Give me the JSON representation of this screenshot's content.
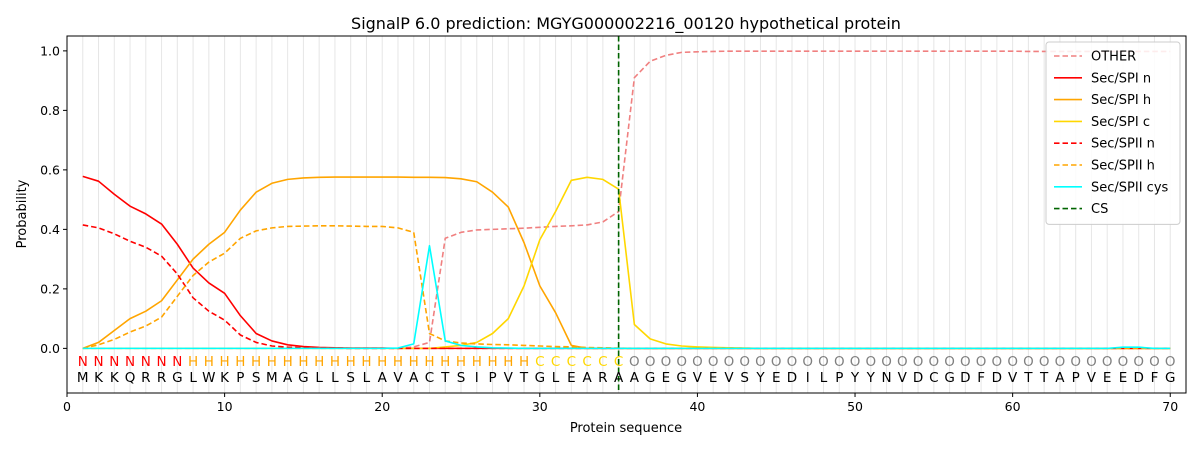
{
  "chart_data": {
    "type": "line",
    "title": "SignalP 6.0 prediction: MGYG000002216_00120 hypothetical protein",
    "xlabel": "Protein sequence",
    "ylabel": "Probability",
    "xlim": [
      0,
      71
    ],
    "ylim": [
      -0.15,
      1.05
    ],
    "xticks": [
      "0",
      "10",
      "20",
      "30",
      "40",
      "50",
      "60",
      "70"
    ],
    "yticks": [
      "0.0",
      "0.2",
      "0.4",
      "0.6",
      "0.8",
      "1.0"
    ],
    "grid": "vertical lines at each residue",
    "legend_position": "top-right",
    "sequence": [
      "M",
      "K",
      "K",
      "Q",
      "R",
      "R",
      "G",
      "L",
      "W",
      "K",
      "P",
      "S",
      "M",
      "A",
      "G",
      "L",
      "L",
      "S",
      "L",
      "A",
      "V",
      "A",
      "C",
      "T",
      "S",
      "I",
      "P",
      "V",
      "T",
      "G",
      "L",
      "E",
      "A",
      "R",
      "A",
      "A",
      "G",
      "E",
      "G",
      "V",
      "E",
      "V",
      "S",
      "Y",
      "E",
      "D",
      "I",
      "L",
      "P",
      "Y",
      "Y",
      "N",
      "V",
      "D",
      "C",
      "G",
      "D",
      "F",
      "D",
      "V",
      "T",
      "T",
      "A",
      "P",
      "V",
      "E",
      "E",
      "D",
      "F",
      "G"
    ],
    "region_labels": [
      "N",
      "N",
      "N",
      "N",
      "N",
      "N",
      "N",
      "H",
      "H",
      "H",
      "H",
      "H",
      "H",
      "H",
      "H",
      "H",
      "H",
      "H",
      "H",
      "H",
      "H",
      "H",
      "H",
      "H",
      "H",
      "H",
      "H",
      "H",
      "H",
      "C",
      "C",
      "C",
      "C",
      "C",
      "C",
      "O",
      "O",
      "O",
      "O",
      "O",
      "O",
      "O",
      "O",
      "O",
      "O",
      "O",
      "O",
      "O",
      "O",
      "O",
      "O",
      "O",
      "O",
      "O",
      "O",
      "O",
      "O",
      "O",
      "O",
      "O",
      "O",
      "O",
      "O",
      "O",
      "O",
      "O",
      "O",
      "O",
      "O",
      "O"
    ],
    "region_colors": {
      "N": "#ff0000",
      "H": "#ffa500",
      "C": "#ffd700",
      "O": "#808080"
    },
    "cleavage_site": 35,
    "series": [
      {
        "name": "OTHER",
        "color": "#f08080",
        "dash": "dashed",
        "values": [
          0.0,
          0.0,
          0.0,
          0.0,
          0.0,
          0.0,
          0.0,
          0.0,
          0.0,
          0.0,
          0.0,
          0.0,
          0.0,
          0.0,
          0.0,
          0.0,
          0.0,
          0.0,
          0.0,
          0.0,
          0.0,
          0.005,
          0.02,
          0.37,
          0.39,
          0.398,
          0.4,
          0.402,
          0.404,
          0.407,
          0.41,
          0.412,
          0.415,
          0.425,
          0.46,
          0.91,
          0.965,
          0.985,
          0.995,
          0.997,
          0.998,
          0.999,
          0.999,
          0.999,
          0.999,
          0.999,
          0.999,
          0.999,
          0.999,
          0.999,
          0.999,
          0.999,
          0.999,
          0.999,
          0.999,
          0.999,
          0.999,
          0.999,
          0.999,
          0.999,
          0.998,
          0.998,
          0.998,
          0.998,
          0.998,
          0.998,
          0.998,
          0.998,
          0.998,
          0.998
        ]
      },
      {
        "name": "Sec/SPI n",
        "color": "#ff0000",
        "dash": "solid",
        "values": [
          0.578,
          0.562,
          0.518,
          0.478,
          0.452,
          0.418,
          0.35,
          0.27,
          0.22,
          0.185,
          0.11,
          0.05,
          0.025,
          0.012,
          0.006,
          0.003,
          0.002,
          0.001,
          0.001,
          0.001,
          0.0,
          0.0,
          0.0,
          0.0,
          0.0,
          0.0,
          0.0,
          0.0,
          0.0,
          0.0,
          0.0,
          0.0,
          0.0,
          0.0,
          0.0,
          0.0,
          0.0,
          0.0,
          0.0,
          0.0,
          0.0,
          0.0,
          0.0,
          0.0,
          0.0,
          0.0,
          0.0,
          0.0,
          0.0,
          0.0,
          0.0,
          0.0,
          0.0,
          0.0,
          0.0,
          0.0,
          0.0,
          0.0,
          0.0,
          0.0,
          0.0,
          0.0,
          0.0,
          0.0,
          0.0,
          0.0,
          0.0,
          0.0,
          0.0,
          0.0
        ]
      },
      {
        "name": "Sec/SPI h",
        "color": "#ffa500",
        "dash": "solid",
        "values": [
          0.0,
          0.02,
          0.06,
          0.1,
          0.125,
          0.16,
          0.23,
          0.3,
          0.35,
          0.39,
          0.465,
          0.525,
          0.555,
          0.568,
          0.573,
          0.575,
          0.576,
          0.576,
          0.576,
          0.576,
          0.576,
          0.575,
          0.575,
          0.574,
          0.57,
          0.56,
          0.525,
          0.475,
          0.355,
          0.21,
          0.12,
          0.01,
          0.0,
          0.0,
          0.0,
          0.0,
          0.0,
          0.0,
          0.0,
          0.0,
          0.0,
          0.0,
          0.0,
          0.0,
          0.0,
          0.0,
          0.0,
          0.0,
          0.0,
          0.0,
          0.0,
          0.0,
          0.0,
          0.0,
          0.0,
          0.0,
          0.0,
          0.0,
          0.0,
          0.0,
          0.0,
          0.0,
          0.0,
          0.0,
          0.0,
          0.0,
          0.0,
          0.0,
          0.0,
          0.0
        ]
      },
      {
        "name": "Sec/SPI c",
        "color": "#ffd700",
        "dash": "solid",
        "values": [
          0.0,
          0.0,
          0.0,
          0.0,
          0.0,
          0.0,
          0.0,
          0.0,
          0.0,
          0.0,
          0.0,
          0.0,
          0.0,
          0.0,
          0.0,
          0.0,
          0.0,
          0.0,
          0.0,
          0.0,
          0.0,
          0.0,
          0.0,
          0.005,
          0.01,
          0.02,
          0.05,
          0.1,
          0.21,
          0.365,
          0.46,
          0.565,
          0.575,
          0.568,
          0.535,
          0.08,
          0.032,
          0.015,
          0.008,
          0.005,
          0.003,
          0.002,
          0.001,
          0.0,
          0.0,
          0.0,
          0.0,
          0.0,
          0.0,
          0.0,
          0.0,
          0.0,
          0.0,
          0.0,
          0.0,
          0.0,
          0.0,
          0.0,
          0.0,
          0.0,
          0.0,
          0.0,
          0.0,
          0.0,
          0.0,
          0.0,
          0.0,
          0.0,
          0.0,
          0.0
        ]
      },
      {
        "name": "Sec/SPII n",
        "color": "#ff0000",
        "dash": "dashed",
        "values": [
          0.415,
          0.405,
          0.385,
          0.36,
          0.34,
          0.31,
          0.25,
          0.17,
          0.125,
          0.095,
          0.045,
          0.02,
          0.008,
          0.004,
          0.002,
          0.001,
          0.001,
          0.0,
          0.0,
          0.0,
          0.0,
          0.0,
          0.0,
          0.0,
          0.0,
          0.0,
          0.0,
          0.0,
          0.0,
          0.0,
          0.0,
          0.0,
          0.0,
          0.0,
          0.0,
          0.0,
          0.0,
          0.0,
          0.0,
          0.0,
          0.0,
          0.0,
          0.0,
          0.0,
          0.0,
          0.0,
          0.0,
          0.0,
          0.0,
          0.0,
          0.0,
          0.0,
          0.0,
          0.0,
          0.0,
          0.0,
          0.0,
          0.0,
          0.0,
          0.0,
          0.0,
          0.0,
          0.0,
          0.0,
          0.0,
          0.0,
          0.0,
          0.0,
          0.0,
          0.0
        ]
      },
      {
        "name": "Sec/SPII h",
        "color": "#ffa500",
        "dash": "dashed",
        "values": [
          0.0,
          0.012,
          0.03,
          0.055,
          0.075,
          0.105,
          0.175,
          0.245,
          0.29,
          0.32,
          0.37,
          0.395,
          0.405,
          0.41,
          0.411,
          0.412,
          0.412,
          0.411,
          0.41,
          0.41,
          0.405,
          0.39,
          0.05,
          0.025,
          0.018,
          0.015,
          0.013,
          0.012,
          0.01,
          0.008,
          0.006,
          0.005,
          0.003,
          0.002,
          0.001,
          0.0,
          0.0,
          0.0,
          0.0,
          0.0,
          0.0,
          0.0,
          0.0,
          0.0,
          0.0,
          0.0,
          0.0,
          0.0,
          0.0,
          0.0,
          0.0,
          0.0,
          0.0,
          0.0,
          0.0,
          0.0,
          0.0,
          0.0,
          0.0,
          0.0,
          0.0,
          0.0,
          0.0,
          0.0,
          0.0,
          0.0,
          0.0,
          0.0,
          0.0,
          0.0
        ]
      },
      {
        "name": "Sec/SPII cys",
        "color": "#00ffff",
        "dash": "solid",
        "values": [
          0.0,
          0.0,
          0.0,
          0.0,
          0.0,
          0.0,
          0.0,
          0.0,
          0.0,
          0.0,
          0.0,
          0.0,
          0.0,
          0.0,
          0.0,
          0.0,
          0.0,
          0.0,
          0.0,
          0.0,
          0.001,
          0.015,
          0.345,
          0.025,
          0.01,
          0.005,
          0.002,
          0.001,
          0.0,
          0.0,
          0.0,
          0.0,
          0.0,
          0.0,
          0.0,
          0.0,
          0.0,
          0.0,
          0.0,
          0.0,
          0.0,
          0.0,
          0.0,
          0.0,
          0.0,
          0.0,
          0.0,
          0.0,
          0.0,
          0.0,
          0.0,
          0.0,
          0.0,
          0.0,
          0.0,
          0.0,
          0.0,
          0.0,
          0.0,
          0.0,
          0.0,
          0.0,
          0.0,
          0.0,
          0.0,
          0.0,
          0.004,
          0.004,
          0.0,
          0.0
        ]
      },
      {
        "name": "CS",
        "color": "#006400",
        "dash": "dashed",
        "vertical_at": 35
      }
    ]
  }
}
